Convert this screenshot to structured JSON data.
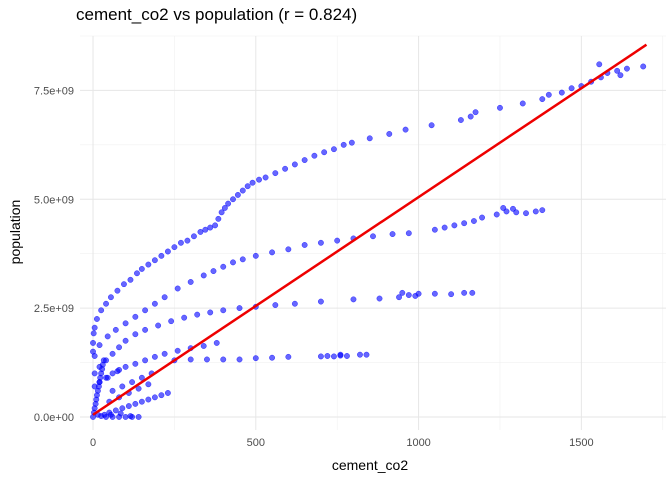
{
  "chart_data": {
    "type": "scatter",
    "title": "cement_co2 vs population (r = 0.824)",
    "xlabel": "cement_co2",
    "ylabel": "population",
    "xlim": [
      -40,
      1760
    ],
    "ylim": [
      -300000000.0,
      8750000000.0
    ],
    "x_ticks": [
      0,
      500,
      1000,
      1500
    ],
    "x_tick_labels": [
      "0",
      "500",
      "1000",
      "1500"
    ],
    "y_ticks": [
      0,
      2500000000.0,
      5000000000.0,
      7500000000.0
    ],
    "y_tick_labels": [
      "0.0e+00",
      "2.5e+09",
      "5.0e+09",
      "7.5e+09"
    ],
    "grid": true,
    "point_color": "#0000ff",
    "line_color": "#ee0000",
    "regression_line": {
      "x": [
        0,
        1700
      ],
      "y": [
        50000000.0,
        8550000000.0
      ]
    },
    "series": [
      {
        "points": [
          [
            2,
            1920000000.0
          ],
          [
            5,
            2050000000.0
          ],
          [
            12,
            2250000000.0
          ],
          [
            25,
            2450000000.0
          ],
          [
            40,
            2600000000.0
          ],
          [
            55,
            2750000000.0
          ],
          [
            75,
            2900000000.0
          ],
          [
            95,
            3050000000.0
          ],
          [
            115,
            3150000000.0
          ],
          [
            135,
            3300000000.0
          ],
          [
            150,
            3400000000.0
          ],
          [
            170,
            3500000000.0
          ],
          [
            190,
            3600000000.0
          ],
          [
            210,
            3700000000.0
          ],
          [
            230,
            3800000000.0
          ],
          [
            250,
            3900000000.0
          ],
          [
            270,
            4000000000.0
          ],
          [
            290,
            4050000000.0
          ],
          [
            310,
            4150000000.0
          ],
          [
            330,
            4250000000.0
          ],
          [
            345,
            4300000000.0
          ],
          [
            360,
            4350000000.0
          ],
          [
            375,
            4400000000.0
          ],
          [
            385,
            4550000000.0
          ],
          [
            395,
            4700000000.0
          ],
          [
            405,
            4800000000.0
          ],
          [
            415,
            4900000000.0
          ],
          [
            430,
            5000000000.0
          ],
          [
            445,
            5100000000.0
          ],
          [
            460,
            5200000000.0
          ],
          [
            475,
            5300000000.0
          ],
          [
            490,
            5380000000.0
          ],
          [
            510,
            5450000000.0
          ],
          [
            530,
            5500000000.0
          ],
          [
            560,
            5600000000.0
          ],
          [
            590,
            5700000000.0
          ],
          [
            620,
            5800000000.0
          ],
          [
            650,
            5900000000.0
          ],
          [
            680,
            6000000000.0
          ],
          [
            710,
            6080000000.0
          ],
          [
            740,
            6150000000.0
          ],
          [
            770,
            6250000000.0
          ],
          [
            795,
            6300000000.0
          ],
          [
            850,
            6400000000.0
          ],
          [
            910,
            6500000000.0
          ],
          [
            960,
            6600000000.0
          ],
          [
            1040,
            6700000000.0
          ],
          [
            1130,
            6820000000.0
          ],
          [
            1160,
            6900000000.0
          ],
          [
            1175,
            7000000000.0
          ],
          [
            1250,
            7100000000.0
          ],
          [
            1320,
            7200000000.0
          ],
          [
            1380,
            7300000000.0
          ],
          [
            1400,
            7400000000.0
          ],
          [
            1440,
            7450000000.0
          ],
          [
            1470,
            7550000000.0
          ],
          [
            1500,
            7600000000.0
          ],
          [
            1530,
            7700000000.0
          ],
          [
            1560,
            7800000000.0
          ],
          [
            1580,
            7900000000.0
          ],
          [
            1610,
            7950000000.0
          ],
          [
            1640,
            8000000000.0
          ],
          [
            1690,
            8050000000.0
          ],
          [
            1620,
            7850000000.0
          ],
          [
            1555,
            8100000000.0
          ]
        ]
      },
      {
        "points": [
          [
            5,
            1400000000.0
          ],
          [
            20,
            1650000000.0
          ],
          [
            45,
            1850000000.0
          ],
          [
            70,
            2000000000.0
          ],
          [
            100,
            2150000000.0
          ],
          [
            130,
            2300000000.0
          ],
          [
            160,
            2450000000.0
          ],
          [
            190,
            2600000000.0
          ],
          [
            220,
            2750000000.0
          ],
          [
            260,
            2950000000.0
          ],
          [
            300,
            3100000000.0
          ],
          [
            340,
            3250000000.0
          ],
          [
            370,
            3350000000.0
          ],
          [
            400,
            3450000000.0
          ],
          [
            430,
            3550000000.0
          ],
          [
            460,
            3620000000.0
          ],
          [
            500,
            3700000000.0
          ],
          [
            550,
            3780000000.0
          ],
          [
            600,
            3850000000.0
          ],
          [
            650,
            3950000000.0
          ],
          [
            700,
            4000000000.0
          ],
          [
            750,
            4050000000.0
          ],
          [
            800,
            4100000000.0
          ],
          [
            860,
            4150000000.0
          ],
          [
            920,
            4200000000.0
          ],
          [
            970,
            4220000000.0
          ],
          [
            1050,
            4300000000.0
          ],
          [
            1080,
            4350000000.0
          ],
          [
            1110,
            4400000000.0
          ],
          [
            1140,
            4450000000.0
          ],
          [
            1170,
            4500000000.0
          ],
          [
            1195,
            4580000000.0
          ],
          [
            1240,
            4650000000.0
          ],
          [
            1270,
            4720000000.0
          ],
          [
            1300,
            4700000000.0
          ],
          [
            1330,
            4680000000.0
          ],
          [
            1360,
            4720000000.0
          ],
          [
            1380,
            4750000000.0
          ],
          [
            1260,
            4800000000.0
          ],
          [
            1290,
            4780000000.0
          ]
        ]
      },
      {
        "points": [
          [
            5,
            1000000000.0
          ],
          [
            20,
            1150000000.0
          ],
          [
            40,
            1300000000.0
          ],
          [
            60,
            1450000000.0
          ],
          [
            80,
            1600000000.0
          ],
          [
            100,
            1750000000.0
          ],
          [
            130,
            1900000000.0
          ],
          [
            160,
            2000000000.0
          ],
          [
            200,
            2100000000.0
          ],
          [
            240,
            2200000000.0
          ],
          [
            280,
            2280000000.0
          ],
          [
            320,
            2350000000.0
          ],
          [
            360,
            2400000000.0
          ],
          [
            400,
            2450000000.0
          ],
          [
            450,
            2500000000.0
          ],
          [
            500,
            2530000000.0
          ],
          [
            560,
            2570000000.0
          ],
          [
            620,
            2600000000.0
          ],
          [
            700,
            2650000000.0
          ],
          [
            800,
            2700000000.0
          ],
          [
            880,
            2720000000.0
          ],
          [
            940,
            2750000000.0
          ],
          [
            970,
            2800000000.0
          ],
          [
            1000,
            2830000000.0
          ],
          [
            1050,
            2830000000.0
          ],
          [
            1100,
            2820000000.0
          ],
          [
            1140,
            2850000000.0
          ],
          [
            1165,
            2850000000.0
          ],
          [
            950,
            2850000000.0
          ],
          [
            990,
            2780000000.0
          ]
        ]
      },
      {
        "points": [
          [
            5,
            700000000.0
          ],
          [
            20,
            800000000.0
          ],
          [
            40,
            900000000.0
          ],
          [
            60,
            1000000000.0
          ],
          [
            80,
            1080000000.0
          ],
          [
            100,
            1150000000.0
          ],
          [
            130,
            1220000000.0
          ],
          [
            160,
            1300000000.0
          ],
          [
            190,
            1380000000.0
          ],
          [
            220,
            1450000000.0
          ],
          [
            260,
            1520000000.0
          ],
          [
            300,
            1580000000.0
          ],
          [
            340,
            1630000000.0
          ],
          [
            380,
            1700000000.0
          ],
          [
            250,
            1300000000.0
          ],
          [
            300,
            1320000000.0
          ],
          [
            350,
            1320000000.0
          ],
          [
            400,
            1320000000.0
          ],
          [
            450,
            1320000000.0
          ],
          [
            500,
            1350000000.0
          ],
          [
            550,
            1360000000.0
          ],
          [
            600,
            1380000000.0
          ],
          [
            700,
            1390000000.0
          ],
          [
            720,
            1400000000.0
          ],
          [
            740,
            1390000000.0
          ],
          [
            760,
            1410000000.0
          ],
          [
            780,
            1400000000.0
          ],
          [
            820,
            1430000000.0
          ],
          [
            840,
            1430000000.0
          ],
          [
            760,
            1430000000.0
          ]
        ]
      },
      {
        "points": [
          [
            0,
            0.0
          ],
          [
            3,
            100000000.0
          ],
          [
            5,
            200000000.0
          ],
          [
            8,
            300000000.0
          ],
          [
            10,
            400000000.0
          ],
          [
            12,
            500000000.0
          ],
          [
            15,
            600000000.0
          ],
          [
            18,
            700000000.0
          ],
          [
            20,
            800000000.0
          ],
          [
            22,
            900000000.0
          ],
          [
            25,
            1000000000.0
          ],
          [
            28,
            1100000000.0
          ],
          [
            30,
            1200000000.0
          ],
          [
            33,
            1300000000.0
          ],
          [
            0,
            1500000000.0
          ],
          [
            0,
            1700000000.0
          ],
          [
            35,
            50000000.0
          ],
          [
            50,
            100000000.0
          ],
          [
            70,
            150000000.0
          ],
          [
            90,
            200000000.0
          ],
          [
            110,
            250000000.0
          ],
          [
            130,
            300000000.0
          ],
          [
            150,
            350000000.0
          ],
          [
            170,
            400000000.0
          ],
          [
            190,
            450000000.0
          ],
          [
            210,
            500000000.0
          ],
          [
            230,
            550000000.0
          ],
          [
            60,
            600000000.0
          ],
          [
            90,
            700000000.0
          ],
          [
            120,
            800000000.0
          ],
          [
            150,
            900000000.0
          ],
          [
            180,
            1000000000.0
          ],
          [
            40,
            0.0
          ],
          [
            60,
            0.0
          ],
          [
            80,
            0.0
          ],
          [
            100,
            0.0
          ],
          [
            120,
            0.0
          ],
          [
            140,
            0.0
          ],
          [
            50,
            350000000.0
          ],
          [
            80,
            450000000.0
          ],
          [
            110,
            550000000.0
          ],
          [
            140,
            650000000.0
          ],
          [
            170,
            750000000.0
          ],
          [
            45,
            900000000.0
          ],
          [
            75,
            1050000000.0
          ],
          [
            15,
            50000000.0
          ],
          [
            25,
            20000000.0
          ],
          [
            55,
            50000000.0
          ],
          [
            85,
            80000000.0
          ],
          [
            115,
            20000000.0
          ]
        ]
      }
    ]
  }
}
